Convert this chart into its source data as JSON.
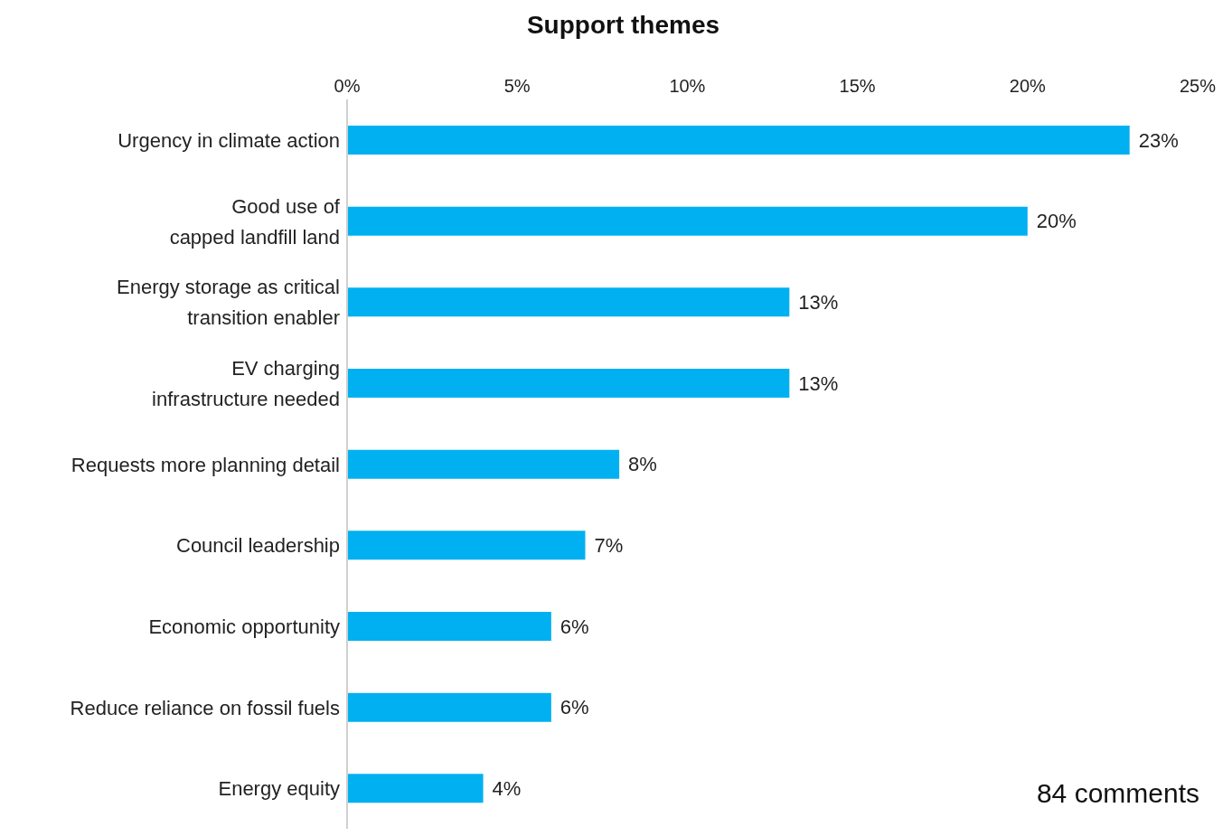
{
  "chart_data": {
    "type": "bar",
    "orientation": "horizontal",
    "title": "Support themes",
    "categories": [
      "Urgency in climate action",
      "Good use of\ncapped landfill land",
      "Energy storage as critical\ntransition enabler",
      "EV charging\ninfrastructure needed",
      "Requests more planning detail",
      "Council leadership",
      "Economic opportunity",
      "Reduce reliance on fossil fuels",
      "Energy equity"
    ],
    "values": [
      23,
      20,
      13,
      13,
      8,
      7,
      6,
      6,
      4
    ],
    "value_labels": [
      "23%",
      "20%",
      "13%",
      "13%",
      "8%",
      "7%",
      "6%",
      "6%",
      "4%"
    ],
    "color": "#00b0f0",
    "xlim": [
      0,
      25
    ],
    "xticks": [
      {
        "value": 0,
        "label": "0%"
      },
      {
        "value": 5,
        "label": "5%"
      },
      {
        "value": 10,
        "label": "10%"
      },
      {
        "value": 15,
        "label": "15%"
      },
      {
        "value": 20,
        "label": "20%"
      },
      {
        "value": 25,
        "label": "25%"
      }
    ],
    "grid": false,
    "legend": false,
    "annotations": [
      "84 comments"
    ]
  }
}
